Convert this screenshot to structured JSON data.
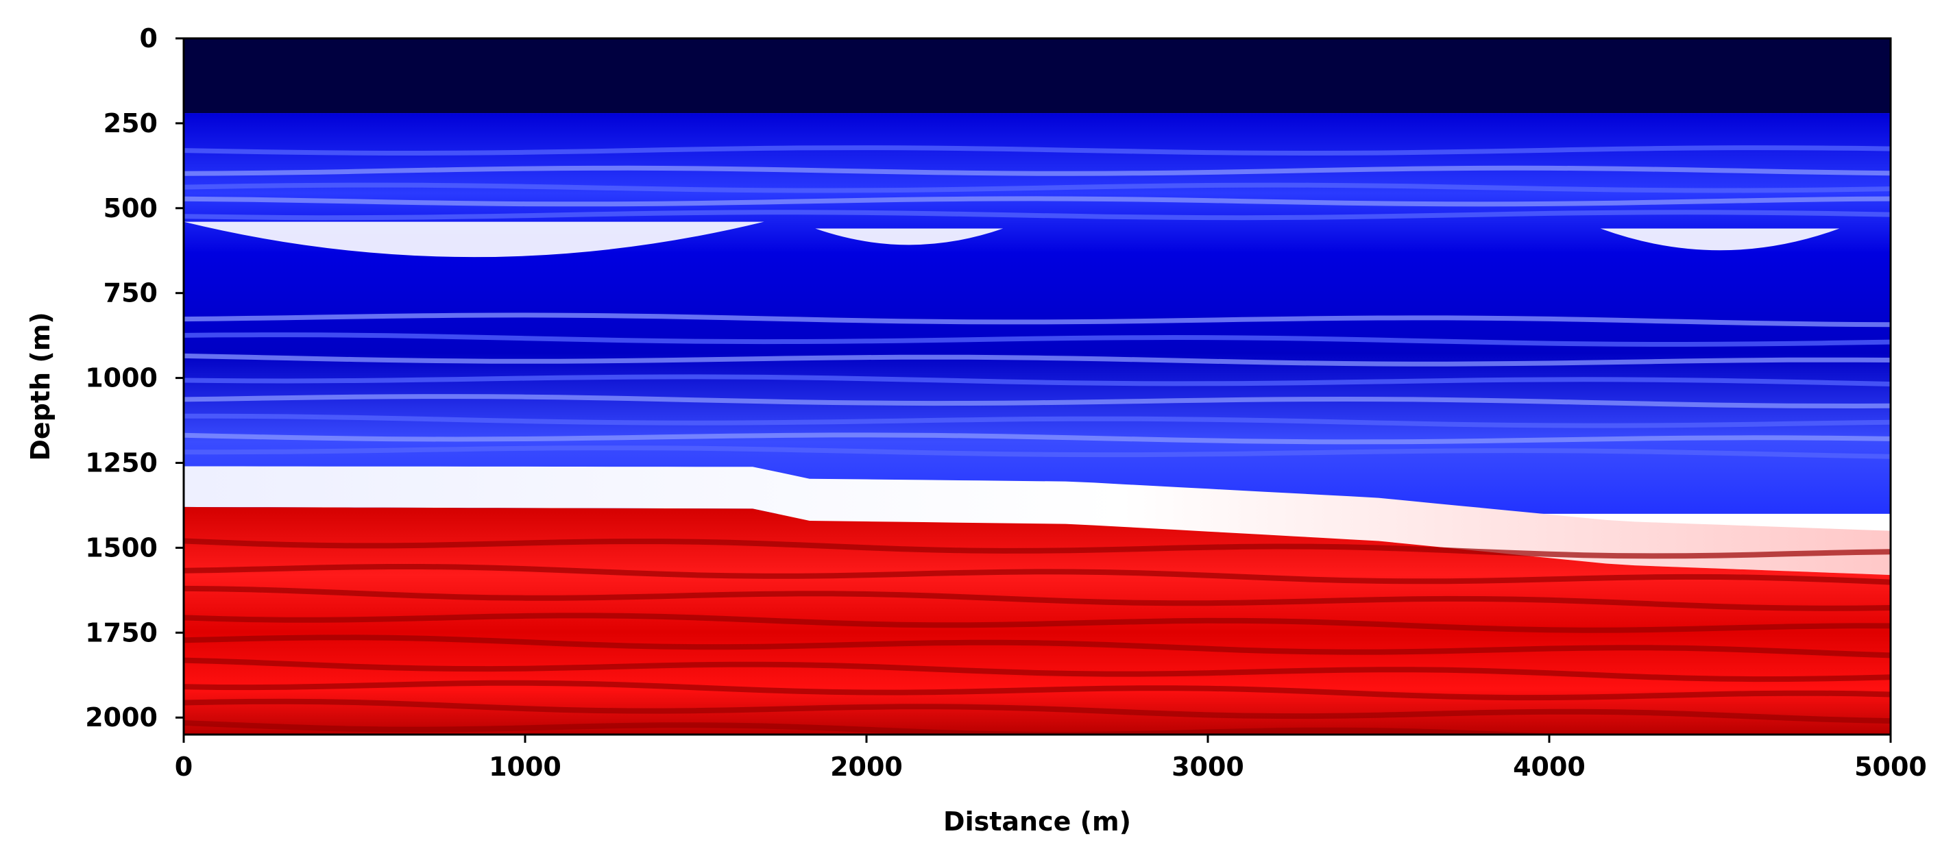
{
  "chart_data": {
    "type": "heatmap",
    "title": "",
    "xlabel": "Distance (m)",
    "ylabel": "Depth (m)",
    "xlim": [
      0,
      5000
    ],
    "ylim": [
      2050,
      0
    ],
    "y_inverted": true,
    "grid": false,
    "colormap": "seismic",
    "colorbar": false,
    "x_ticks": [
      0,
      1000,
      2000,
      3000,
      4000,
      5000
    ],
    "x_tick_labels": [
      "0",
      "1000",
      "2000",
      "3000",
      "4000",
      "5000"
    ],
    "y_ticks": [
      0,
      250,
      500,
      750,
      1000,
      1250,
      1500,
      1750,
      2000
    ],
    "y_tick_labels": [
      "0",
      "250",
      "500",
      "750",
      "1000",
      "1250",
      "1500",
      "1750",
      "2000"
    ],
    "layers": [
      {
        "top_depth": 0,
        "color": "#000040"
      },
      {
        "top_depth": 220,
        "color": "#0000cc"
      },
      {
        "top_depth": 1250,
        "color": "#f2f2ff"
      },
      {
        "top_depth": 1380,
        "color": "#e60000"
      }
    ],
    "water_bottom_depth": 220,
    "red_interface": [
      {
        "x": 0,
        "depth": 1380
      },
      {
        "x": 1700,
        "depth": 1385
      },
      {
        "x": 1800,
        "depth": 1420
      },
      {
        "x": 2600,
        "depth": 1430
      },
      {
        "x": 3500,
        "depth": 1480
      },
      {
        "x": 4200,
        "depth": 1550
      },
      {
        "x": 5000,
        "depth": 1580
      }
    ],
    "white_lenses": [
      {
        "x_start": 0,
        "x_end": 1700,
        "top_depth": 540,
        "bottom_depth": 670
      },
      {
        "x_start": 1850,
        "x_end": 2400,
        "top_depth": 560,
        "bottom_depth": 620
      },
      {
        "x_start": 4150,
        "x_end": 4850,
        "top_depth": 560,
        "bottom_depth": 640
      }
    ]
  }
}
